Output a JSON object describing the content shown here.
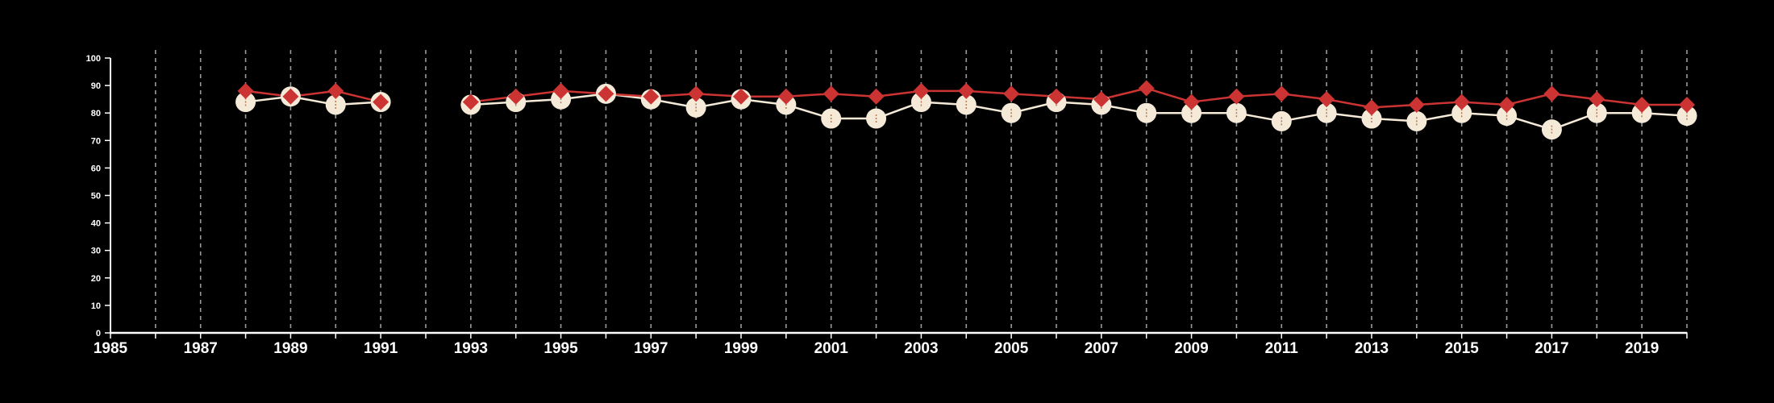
{
  "chart_data": {
    "type": "line",
    "title": "",
    "xlabel": "",
    "ylabel": "",
    "xlim": [
      1985,
      2020
    ],
    "ylim": [
      0,
      100
    ],
    "grid": "vertical dashed",
    "legend": "none",
    "x_tick_labels": [
      "1985",
      "1987",
      "1989",
      "1991",
      "1993",
      "1995",
      "1997",
      "1999",
      "2001",
      "2003",
      "2005",
      "2007",
      "2009",
      "2011",
      "2013",
      "2015",
      "2017",
      "2019"
    ],
    "y_tick_labels": [
      "0",
      "10",
      "20",
      "30",
      "40",
      "50",
      "60",
      "70",
      "80",
      "90",
      "100"
    ],
    "series": [
      {
        "marker": "diamond",
        "color": "#cc3333",
        "points": [
          [
            1988,
            88
          ],
          [
            1989,
            86
          ],
          [
            1990,
            88
          ],
          [
            1991,
            84
          ],
          [
            1993,
            84
          ],
          [
            1994,
            86
          ],
          [
            1995,
            88
          ],
          [
            1996,
            87
          ],
          [
            1997,
            86
          ],
          [
            1998,
            87
          ],
          [
            1999,
            86
          ],
          [
            2000,
            86
          ],
          [
            2001,
            87
          ],
          [
            2002,
            86
          ],
          [
            2003,
            88
          ],
          [
            2004,
            88
          ],
          [
            2005,
            87
          ],
          [
            2006,
            86
          ],
          [
            2007,
            85
          ],
          [
            2008,
            89
          ],
          [
            2009,
            84
          ],
          [
            2010,
            86
          ],
          [
            2011,
            87
          ],
          [
            2012,
            85
          ],
          [
            2013,
            82
          ],
          [
            2014,
            83
          ],
          [
            2015,
            84
          ],
          [
            2016,
            83
          ],
          [
            2017,
            87
          ],
          [
            2018,
            85
          ],
          [
            2019,
            83
          ],
          [
            2020,
            83
          ]
        ]
      },
      {
        "marker": "circle",
        "color": "#f5ead8",
        "points": [
          [
            1988,
            84
          ],
          [
            1989,
            86
          ],
          [
            1990,
            83
          ],
          [
            1991,
            84
          ],
          [
            1993,
            83
          ],
          [
            1994,
            84
          ],
          [
            1995,
            85
          ],
          [
            1996,
            87
          ],
          [
            1997,
            85
          ],
          [
            1998,
            82
          ],
          [
            1999,
            85
          ],
          [
            2000,
            83
          ],
          [
            2001,
            78
          ],
          [
            2002,
            78
          ],
          [
            2003,
            84
          ],
          [
            2004,
            83
          ],
          [
            2005,
            80
          ],
          [
            2006,
            84
          ],
          [
            2007,
            83
          ],
          [
            2008,
            80
          ],
          [
            2009,
            80
          ],
          [
            2010,
            80
          ],
          [
            2011,
            77
          ],
          [
            2012,
            80
          ],
          [
            2013,
            78
          ],
          [
            2014,
            77
          ],
          [
            2015,
            80
          ],
          [
            2016,
            79
          ],
          [
            2017,
            74
          ],
          [
            2018,
            80
          ],
          [
            2019,
            80
          ],
          [
            2020,
            79
          ]
        ]
      }
    ]
  },
  "colors": {
    "background": "#000000",
    "axis": "#ffffff",
    "grid": "#9a9a9a",
    "series_a": "#cc3333",
    "series_b": "#f5ead8",
    "circle_mark": "#b07a55"
  }
}
